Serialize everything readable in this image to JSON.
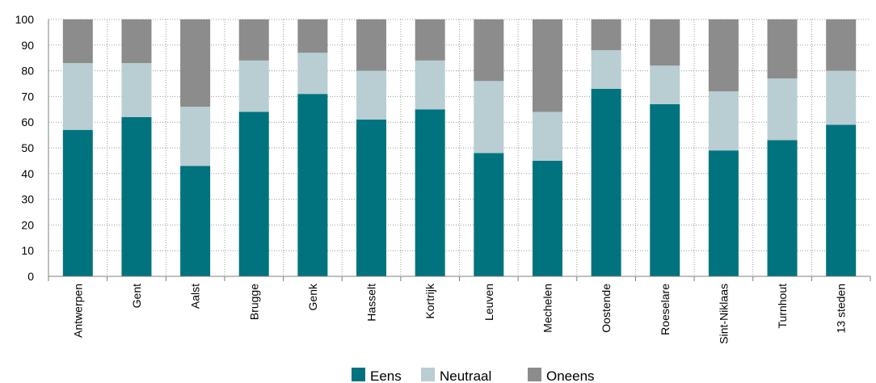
{
  "chart_data": {
    "type": "bar",
    "stacked": true,
    "percent_stacked": true,
    "categories": [
      "Antwerpen",
      "Gent",
      "Aalst",
      "Brugge",
      "Genk",
      "Hasselt",
      "Kortrijk",
      "Leuven",
      "Mechelen",
      "Oostende",
      "Roeselare",
      "Sint-Niklaas",
      "Turnhout",
      "13 steden"
    ],
    "series": [
      {
        "name": "Eens",
        "color": "#00737e",
        "values": [
          57,
          62,
          43,
          64,
          71,
          61,
          65,
          48,
          45,
          73,
          67,
          49,
          53,
          59
        ]
      },
      {
        "name": "Neutraal",
        "color": "#b8ced3",
        "values": [
          26,
          21,
          23,
          20,
          16,
          19,
          19,
          28,
          19,
          15,
          15,
          23,
          24,
          21
        ]
      },
      {
        "name": "Oneens",
        "color": "#8c8c8c",
        "values": [
          17,
          17,
          34,
          16,
          13,
          20,
          16,
          24,
          36,
          12,
          18,
          28,
          23,
          20
        ]
      }
    ],
    "ylim": [
      0,
      100
    ],
    "yticks": [
      0,
      10,
      20,
      30,
      40,
      50,
      60,
      70,
      80,
      90,
      100
    ],
    "grid": "horizontal dotted + vertical dotted between bars",
    "legend_position": "bottom-center",
    "title": "",
    "xlabel": "",
    "ylabel": ""
  }
}
